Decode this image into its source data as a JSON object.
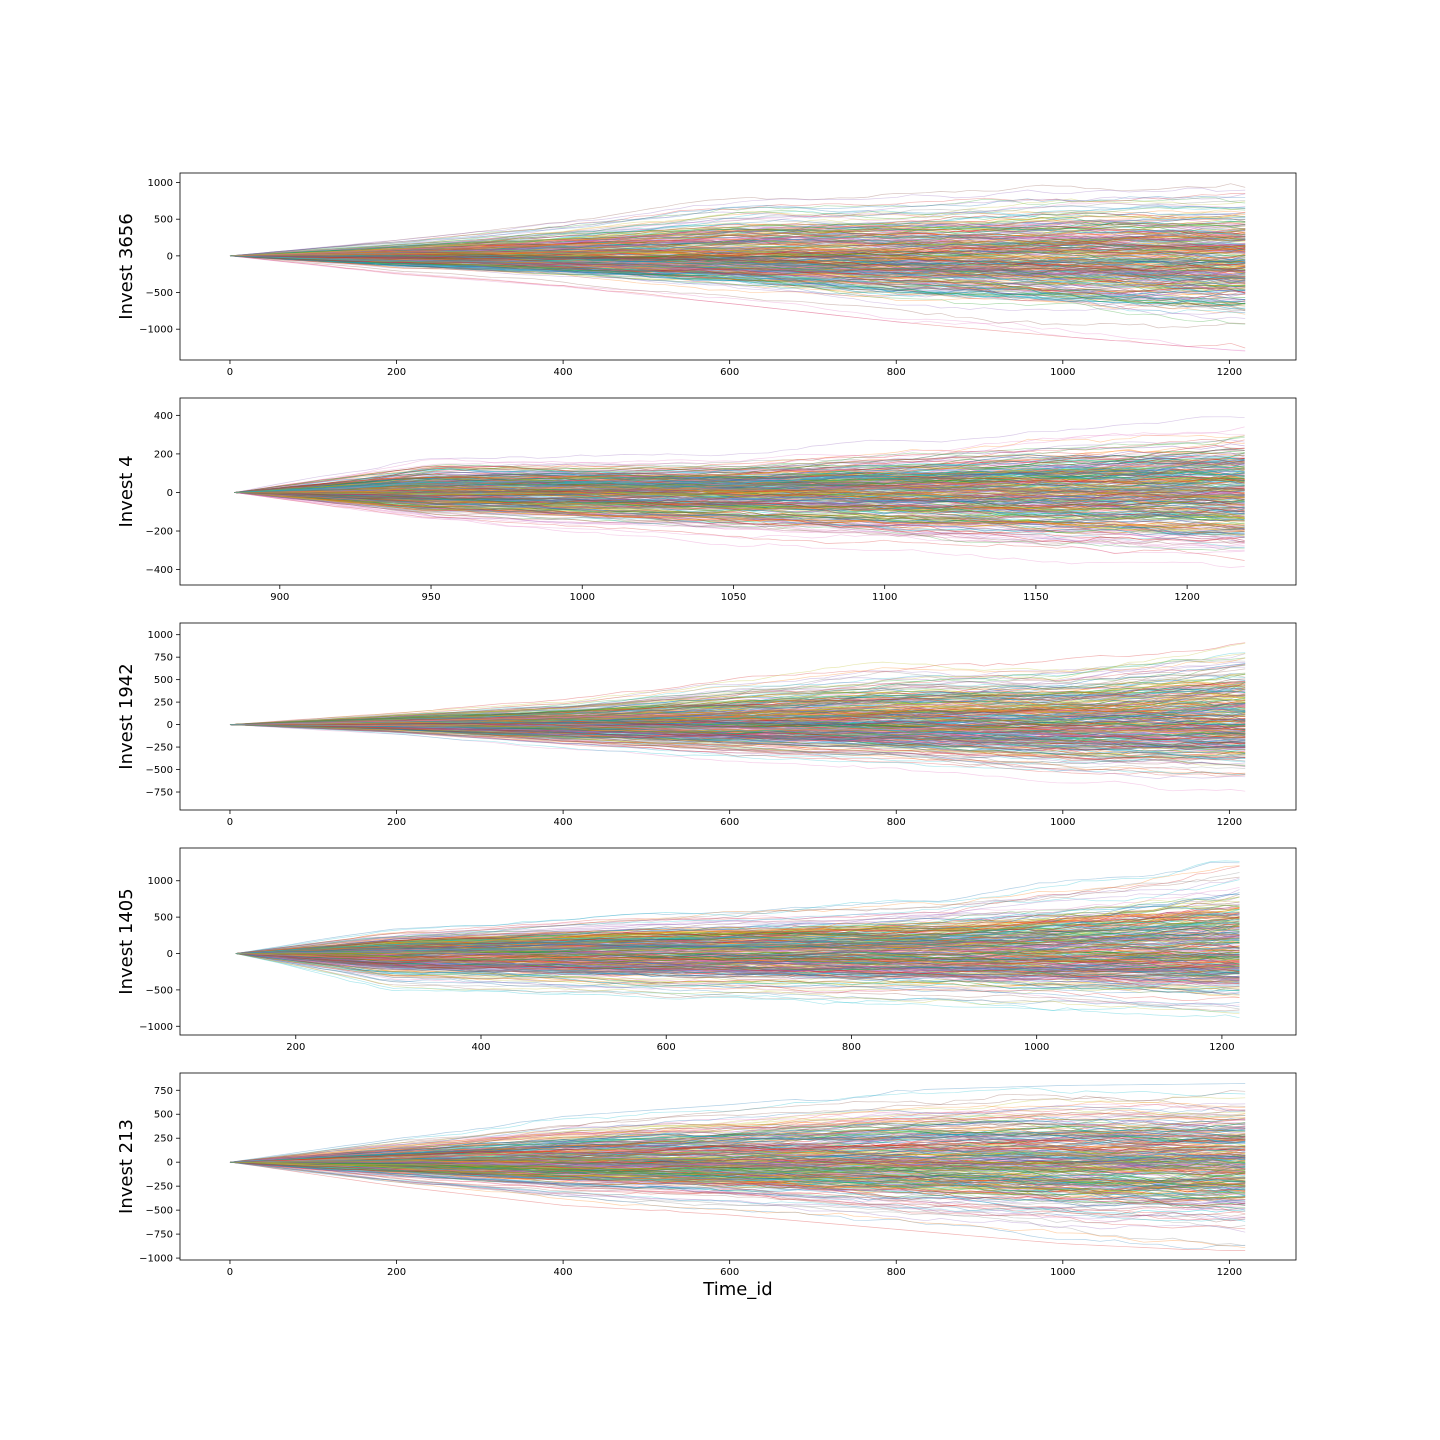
{
  "chart_data": [
    {
      "type": "line",
      "ylabel": "Invest 3656",
      "xlabel": "",
      "xlim": [
        -60,
        1280
      ],
      "ylim": [
        -1420,
        1130
      ],
      "xticks": [
        0,
        200,
        400,
        600,
        800,
        1000,
        1200
      ],
      "yticks": [
        -1000,
        -500,
        0,
        500,
        1000
      ],
      "series_count": 300,
      "x_range": [
        0,
        1219
      ],
      "envelope": [
        {
          "x": 0,
          "min": 0,
          "max": 0
        },
        {
          "x": 200,
          "min": -250,
          "max": 230
        },
        {
          "x": 400,
          "min": -420,
          "max": 500
        },
        {
          "x": 600,
          "min": -650,
          "max": 800
        },
        {
          "x": 800,
          "min": -900,
          "max": 880
        },
        {
          "x": 1000,
          "min": -1100,
          "max": 1000
        },
        {
          "x": 1219,
          "min": -1300,
          "max": 1020
        }
      ],
      "grid": false,
      "legend": "none"
    },
    {
      "type": "line",
      "ylabel": "Invest 4",
      "xlabel": "",
      "xlim": [
        867,
        1236
      ],
      "ylim": [
        -480,
        490
      ],
      "xticks": [
        900,
        950,
        1000,
        1050,
        1100,
        1150,
        1200
      ],
      "yticks": [
        -400,
        -200,
        0,
        200,
        400
      ],
      "series_count": 300,
      "x_range": [
        885,
        1219
      ],
      "envelope": [
        {
          "x": 885,
          "min": 0,
          "max": 0
        },
        {
          "x": 950,
          "min": -170,
          "max": 230
        },
        {
          "x": 1050,
          "min": -280,
          "max": 240
        },
        {
          "x": 1150,
          "min": -380,
          "max": 380
        },
        {
          "x": 1219,
          "min": -430,
          "max": 450
        }
      ],
      "grid": false,
      "legend": "none"
    },
    {
      "type": "line",
      "ylabel": "Invest 1942",
      "xlabel": "",
      "xlim": [
        -60,
        1280
      ],
      "ylim": [
        -950,
        1130
      ],
      "xticks": [
        0,
        200,
        400,
        600,
        800,
        1000,
        1200
      ],
      "yticks": [
        -750,
        -500,
        -250,
        0,
        250,
        500,
        750,
        1000
      ],
      "series_count": 300,
      "x_range": [
        0,
        1219
      ],
      "envelope": [
        {
          "x": 0,
          "min": 0,
          "max": 0
        },
        {
          "x": 200,
          "min": -120,
          "max": 150
        },
        {
          "x": 400,
          "min": -300,
          "max": 300
        },
        {
          "x": 600,
          "min": -450,
          "max": 550
        },
        {
          "x": 800,
          "min": -550,
          "max": 750
        },
        {
          "x": 1000,
          "min": -700,
          "max": 800
        },
        {
          "x": 1219,
          "min": -780,
          "max": 1060
        }
      ],
      "grid": false,
      "legend": "none"
    },
    {
      "type": "line",
      "ylabel": "Invest 1405",
      "xlabel": "",
      "xlim": [
        75,
        1280
      ],
      "ylim": [
        -1120,
        1450
      ],
      "xticks": [
        200,
        400,
        600,
        800,
        1000,
        1200
      ],
      "yticks": [
        -1000,
        -500,
        0,
        500,
        1000
      ],
      "series_count": 300,
      "x_range": [
        135,
        1219
      ],
      "envelope": [
        {
          "x": 135,
          "min": 0,
          "max": 0
        },
        {
          "x": 300,
          "min": -520,
          "max": 350
        },
        {
          "x": 600,
          "min": -700,
          "max": 600
        },
        {
          "x": 900,
          "min": -800,
          "max": 800
        },
        {
          "x": 1219,
          "min": -1000,
          "max": 1330
        }
      ],
      "grid": false,
      "legend": "none"
    },
    {
      "type": "line",
      "ylabel": "Invest 213",
      "xlabel": "Time_id",
      "xlim": [
        -60,
        1280
      ],
      "ylim": [
        -1020,
        930
      ],
      "xticks": [
        0,
        200,
        400,
        600,
        800,
        1000,
        1200
      ],
      "yticks": [
        -1000,
        -750,
        -500,
        -250,
        0,
        250,
        500,
        750
      ],
      "series_count": 300,
      "x_range": [
        0,
        1219
      ],
      "envelope": [
        {
          "x": 0,
          "min": 0,
          "max": 0
        },
        {
          "x": 200,
          "min": -250,
          "max": 250
        },
        {
          "x": 400,
          "min": -450,
          "max": 480
        },
        {
          "x": 600,
          "min": -550,
          "max": 600
        },
        {
          "x": 800,
          "min": -700,
          "max": 750
        },
        {
          "x": 1000,
          "min": -850,
          "max": 800
        },
        {
          "x": 1219,
          "min": -940,
          "max": 820
        }
      ],
      "grid": false,
      "legend": "none"
    }
  ],
  "colors": {
    "palette": [
      "#1f77b4",
      "#ff7f0e",
      "#2ca02c",
      "#d62728",
      "#9467bd",
      "#8c564b",
      "#e377c2",
      "#7f7f7f",
      "#bcbd22",
      "#17becf"
    ],
    "axes": "#000000",
    "background": "#ffffff"
  }
}
